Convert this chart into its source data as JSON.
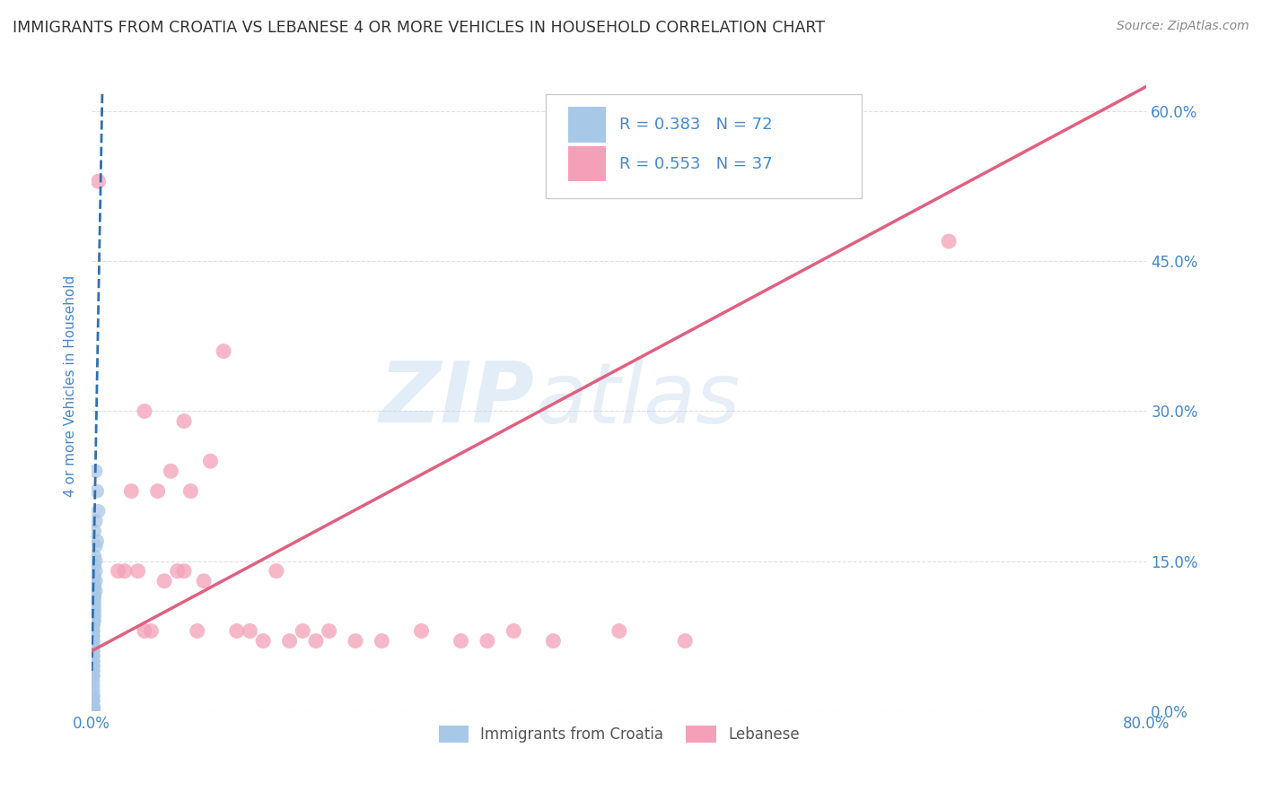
{
  "title": "IMMIGRANTS FROM CROATIA VS LEBANESE 4 OR MORE VEHICLES IN HOUSEHOLD CORRELATION CHART",
  "source": "Source: ZipAtlas.com",
  "xlabel_label": "Immigrants from Croatia",
  "ylabel_label": "4 or more Vehicles in Household",
  "xlim": [
    0.0,
    0.8
  ],
  "ylim": [
    0.0,
    0.65
  ],
  "xticks": [
    0.0,
    0.1,
    0.2,
    0.3,
    0.4,
    0.5,
    0.6,
    0.7,
    0.8
  ],
  "yticks": [
    0.0,
    0.15,
    0.3,
    0.45,
    0.6
  ],
  "ytick_labels_right": [
    "0.0%",
    "15.0%",
    "30.0%",
    "45.0%",
    "60.0%"
  ],
  "croatia_R": 0.383,
  "croatia_N": 72,
  "lebanese_R": 0.553,
  "lebanese_N": 37,
  "croatia_color": "#a8c8e8",
  "lebanese_color": "#f4a0b8",
  "croatia_line_color": "#3070b0",
  "lebanese_line_color": "#e06080",
  "watermark_color": "#d0e4f4",
  "background_color": "#ffffff",
  "grid_color": "#e0e0e0",
  "title_color": "#333333",
  "axis_label_color": "#4488cc",
  "source_color": "#888888",
  "legend_border_color": "#cccccc",
  "bottom_legend_text_color": "#555555",
  "croatia_scatter_x": [
    0.003,
    0.004,
    0.005,
    0.003,
    0.002,
    0.004,
    0.003,
    0.002,
    0.003,
    0.002,
    0.003,
    0.002,
    0.003,
    0.002,
    0.001,
    0.002,
    0.003,
    0.002,
    0.001,
    0.002,
    0.001,
    0.002,
    0.001,
    0.002,
    0.001,
    0.002,
    0.001,
    0.002,
    0.001,
    0.001,
    0.002,
    0.001,
    0.001,
    0.001,
    0.001,
    0.001,
    0.001,
    0.001,
    0.001,
    0.001,
    0.001,
    0.001,
    0.001,
    0.001,
    0.001,
    0.001,
    0.001,
    0.001,
    0.001,
    0.001,
    0.001,
    0.001,
    0.001,
    0.001,
    0.001,
    0.001,
    0.001,
    0.001,
    0.001,
    0.001,
    0.001,
    0.001,
    0.001,
    0.001,
    0.001,
    0.001,
    0.001,
    0.001,
    0.001,
    0.001,
    0.001,
    0.001
  ],
  "croatia_scatter_y": [
    0.24,
    0.22,
    0.2,
    0.19,
    0.18,
    0.17,
    0.165,
    0.155,
    0.15,
    0.145,
    0.14,
    0.135,
    0.13,
    0.125,
    0.13,
    0.125,
    0.12,
    0.115,
    0.12,
    0.115,
    0.11,
    0.11,
    0.105,
    0.105,
    0.1,
    0.1,
    0.095,
    0.095,
    0.09,
    0.085,
    0.09,
    0.085,
    0.08,
    0.08,
    0.075,
    0.075,
    0.07,
    0.07,
    0.065,
    0.065,
    0.06,
    0.06,
    0.055,
    0.055,
    0.05,
    0.05,
    0.045,
    0.045,
    0.04,
    0.04,
    0.035,
    0.035,
    0.03,
    0.025,
    0.02,
    0.015,
    0.015,
    0.01,
    0.01,
    0.005,
    0.005,
    0.003,
    0.003,
    0.002,
    0.002,
    0.001,
    0.001,
    0.001,
    0.001,
    0.001,
    0.001,
    0.0
  ],
  "lebanese_scatter_x": [
    0.005,
    0.02,
    0.025,
    0.03,
    0.035,
    0.04,
    0.045,
    0.05,
    0.055,
    0.06,
    0.065,
    0.07,
    0.075,
    0.08,
    0.085,
    0.09,
    0.1,
    0.11,
    0.12,
    0.13,
    0.14,
    0.15,
    0.16,
    0.17,
    0.18,
    0.2,
    0.22,
    0.25,
    0.28,
    0.3,
    0.32,
    0.35,
    0.4,
    0.45,
    0.65,
    0.07,
    0.04
  ],
  "lebanese_scatter_y": [
    0.53,
    0.14,
    0.14,
    0.22,
    0.14,
    0.3,
    0.08,
    0.22,
    0.13,
    0.24,
    0.14,
    0.14,
    0.22,
    0.08,
    0.13,
    0.25,
    0.36,
    0.08,
    0.08,
    0.07,
    0.14,
    0.07,
    0.08,
    0.07,
    0.08,
    0.07,
    0.07,
    0.08,
    0.07,
    0.07,
    0.08,
    0.07,
    0.08,
    0.07,
    0.47,
    0.29,
    0.08
  ],
  "croatia_line_x0": 0.0,
  "croatia_line_y0": 0.04,
  "croatia_line_x1": 0.008,
  "croatia_line_y1": 0.62,
  "lebanese_line_x0": 0.0,
  "lebanese_line_y0": 0.06,
  "lebanese_line_x1": 0.8,
  "lebanese_line_y1": 0.625
}
